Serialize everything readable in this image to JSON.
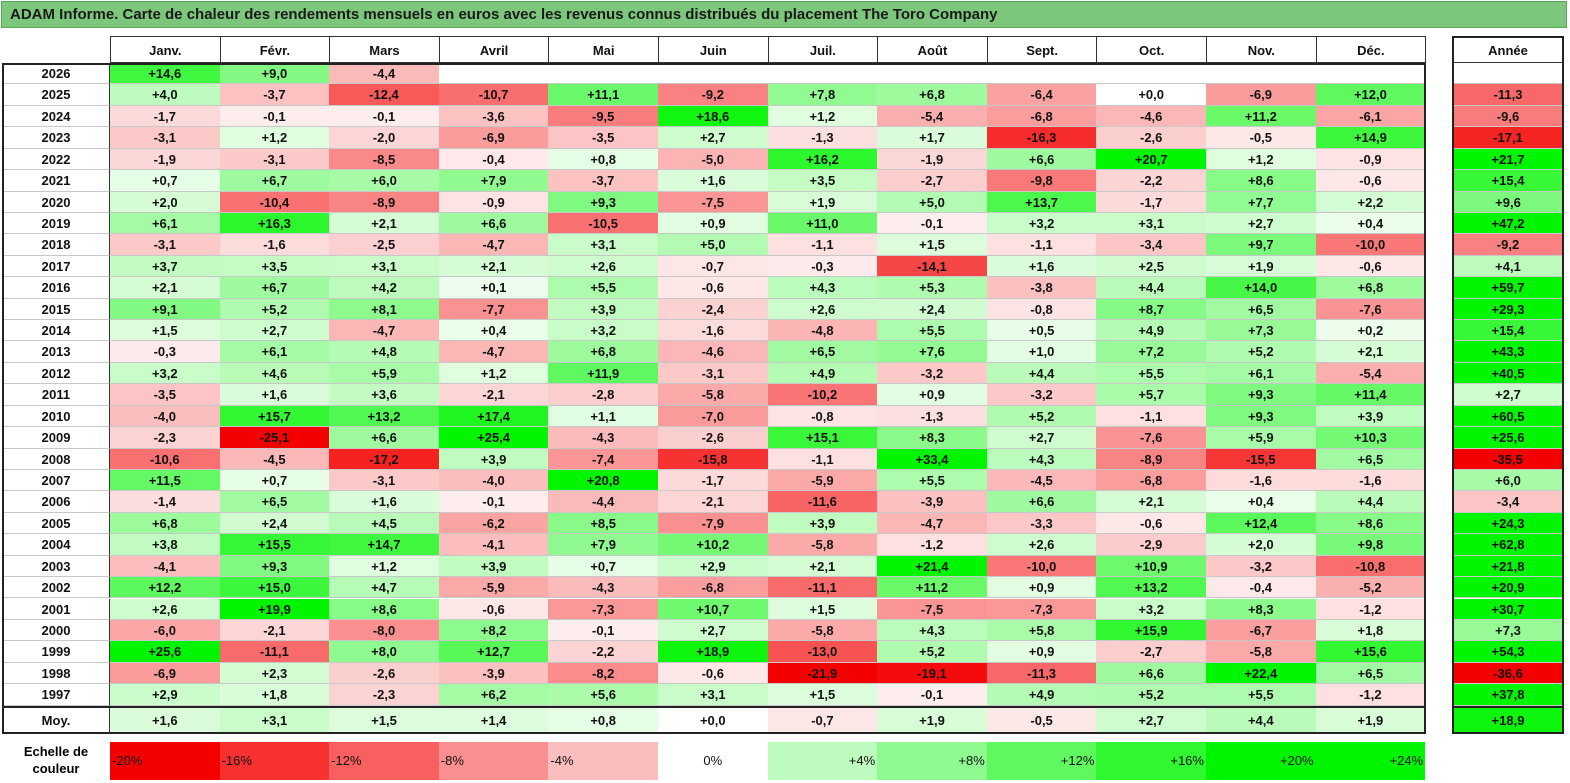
{
  "title": "ADAM Informe. Carte de chaleur des rendements mensuels en euros avec les revenus connus distribués du placement The Toro Company",
  "chart_data": {
    "type": "heatmap",
    "columns": [
      "Janv.",
      "Févr.",
      "Mars",
      "Avril",
      "Mai",
      "Juin",
      "Juil.",
      "Août",
      "Sept.",
      "Oct.",
      "Nov.",
      "Déc."
    ],
    "year_column": "Année",
    "rows": [
      {
        "label": "2026",
        "values": [
          "+14,6",
          "+9,0",
          "-4,4",
          "",
          "",
          "",
          "",
          "",
          "",
          "",
          "",
          ""
        ],
        "year": ""
      },
      {
        "label": "2025",
        "values": [
          "+4,0",
          "-3,7",
          "-12,4",
          "-10,7",
          "+11,1",
          "-9,2",
          "+7,8",
          "+6,8",
          "-6,4",
          "+0,0",
          "-6,9",
          "+12,0"
        ],
        "year": "-11,3"
      },
      {
        "label": "2024",
        "values": [
          "-1,7",
          "-0,1",
          "-0,1",
          "-3,6",
          "-9,5",
          "+18,6",
          "+1,2",
          "-5,4",
          "-6,8",
          "-4,6",
          "+11,2",
          "-6,1"
        ],
        "year": "-9,6"
      },
      {
        "label": "2023",
        "values": [
          "-3,1",
          "+1,2",
          "-2,0",
          "-6,9",
          "-3,5",
          "+2,7",
          "-1,3",
          "+1,7",
          "-16,3",
          "-2,6",
          "-0,5",
          "+14,9"
        ],
        "year": "-17,1"
      },
      {
        "label": "2022",
        "values": [
          "-1,9",
          "-3,1",
          "-8,5",
          "-0,4",
          "+0,8",
          "-5,0",
          "+16,2",
          "-1,9",
          "+6,6",
          "+20,7",
          "+1,2",
          "-0,9"
        ],
        "year": "+21,7"
      },
      {
        "label": "2021",
        "values": [
          "+0,7",
          "+6,7",
          "+6,0",
          "+7,9",
          "-3,7",
          "+1,6",
          "+3,5",
          "-2,7",
          "-9,8",
          "-2,2",
          "+8,6",
          "-0,6"
        ],
        "year": "+15,4"
      },
      {
        "label": "2020",
        "values": [
          "+2,0",
          "-10,4",
          "-8,9",
          "-0,9",
          "+9,3",
          "-7,5",
          "+1,9",
          "+5,0",
          "+13,7",
          "-1,7",
          "+7,7",
          "+2,2"
        ],
        "year": "+9,6"
      },
      {
        "label": "2019",
        "values": [
          "+6,1",
          "+16,3",
          "+2,1",
          "+6,6",
          "-10,5",
          "+0,9",
          "+11,0",
          "-0,1",
          "+3,2",
          "+3,1",
          "+2,7",
          "+0,4"
        ],
        "year": "+47,2"
      },
      {
        "label": "2018",
        "values": [
          "-3,1",
          "-1,6",
          "-2,5",
          "-4,7",
          "+3,1",
          "+5,0",
          "-1,1",
          "+1,5",
          "-1,1",
          "-3,4",
          "+9,7",
          "-10,0"
        ],
        "year": "-9,2"
      },
      {
        "label": "2017",
        "values": [
          "+3,7",
          "+3,5",
          "+3,1",
          "+2,1",
          "+2,6",
          "-0,7",
          "-0,3",
          "-14,1",
          "+1,6",
          "+2,5",
          "+1,9",
          "-0,6"
        ],
        "year": "+4,1"
      },
      {
        "label": "2016",
        "values": [
          "+2,1",
          "+6,7",
          "+4,2",
          "+0,1",
          "+5,5",
          "-0,6",
          "+4,3",
          "+5,3",
          "-3,8",
          "+4,4",
          "+14,0",
          "+6,8"
        ],
        "year": "+59,7"
      },
      {
        "label": "2015",
        "values": [
          "+9,1",
          "+5,2",
          "+8,1",
          "-7,7",
          "+3,9",
          "-2,4",
          "+2,6",
          "+2,4",
          "-0,8",
          "+8,7",
          "+6,5",
          "-7,6"
        ],
        "year": "+29,3"
      },
      {
        "label": "2014",
        "values": [
          "+1,5",
          "+2,7",
          "-4,7",
          "+0,4",
          "+3,2",
          "-1,6",
          "-4,8",
          "+5,5",
          "+0,5",
          "+4,9",
          "+7,3",
          "+0,2"
        ],
        "year": "+15,4"
      },
      {
        "label": "2013",
        "values": [
          "-0,3",
          "+6,1",
          "+4,8",
          "-4,7",
          "+6,8",
          "-4,6",
          "+6,5",
          "+7,6",
          "+1,0",
          "+7,2",
          "+5,2",
          "+2,1"
        ],
        "year": "+43,3"
      },
      {
        "label": "2012",
        "values": [
          "+3,2",
          "+4,6",
          "+5,9",
          "+1,2",
          "+11,9",
          "-3,1",
          "+4,9",
          "-3,2",
          "+4,4",
          "+5,5",
          "+6,1",
          "-5,4"
        ],
        "year": "+40,5"
      },
      {
        "label": "2011",
        "values": [
          "-3,5",
          "+1,6",
          "+3,6",
          "-2,1",
          "-2,8",
          "-5,8",
          "-10,2",
          "+0,9",
          "-3,2",
          "+5,7",
          "+9,3",
          "+11,4"
        ],
        "year": "+2,7"
      },
      {
        "label": "2010",
        "values": [
          "-4,0",
          "+15,7",
          "+13,2",
          "+17,4",
          "+1,1",
          "-7,0",
          "-0,8",
          "-1,3",
          "+5,2",
          "-1,1",
          "+9,3",
          "+3,9"
        ],
        "year": "+60,5"
      },
      {
        "label": "2009",
        "values": [
          "-2,3",
          "-25,1",
          "+6,6",
          "+25,4",
          "-4,3",
          "-2,6",
          "+15,1",
          "+8,3",
          "+2,7",
          "-7,6",
          "+5,9",
          "+10,3"
        ],
        "year": "+25,6"
      },
      {
        "label": "2008",
        "values": [
          "-10,6",
          "-4,5",
          "-17,2",
          "+3,9",
          "-7,4",
          "-15,8",
          "-1,1",
          "+33,4",
          "+4,3",
          "-8,9",
          "-15,5",
          "+6,5"
        ],
        "year": "-35,5"
      },
      {
        "label": "2007",
        "values": [
          "+11,5",
          "+0,7",
          "-3,1",
          "-4,0",
          "+20,8",
          "-1,7",
          "-5,9",
          "+5,5",
          "-4,5",
          "-6,8",
          "-1,6",
          "-1,6"
        ],
        "year": "+6,0"
      },
      {
        "label": "2006",
        "values": [
          "-1,4",
          "+6,5",
          "+1,6",
          "-0,1",
          "-4,4",
          "-2,1",
          "-11,6",
          "-3,9",
          "+6,6",
          "+2,1",
          "+0,4",
          "+4,4"
        ],
        "year": "-3,4"
      },
      {
        "label": "2005",
        "values": [
          "+6,8",
          "+2,4",
          "+4,5",
          "-6,2",
          "+8,5",
          "-7,9",
          "+3,9",
          "-4,7",
          "-3,3",
          "-0,6",
          "+12,4",
          "+8,6"
        ],
        "year": "+24,3"
      },
      {
        "label": "2004",
        "values": [
          "+3,8",
          "+15,5",
          "+14,7",
          "-4,1",
          "+7,9",
          "+10,2",
          "-5,8",
          "-1,2",
          "+2,6",
          "-2,9",
          "+2,0",
          "+9,8"
        ],
        "year": "+62,8"
      },
      {
        "label": "2003",
        "values": [
          "-4,1",
          "+9,3",
          "+1,2",
          "+3,9",
          "+0,7",
          "+2,9",
          "+2,1",
          "+21,4",
          "-10,0",
          "+10,9",
          "-3,2",
          "-10,8"
        ],
        "year": "+21,8"
      },
      {
        "label": "2002",
        "values": [
          "+12,2",
          "+15,0",
          "+4,7",
          "-5,9",
          "-4,3",
          "-6,8",
          "-11,1",
          "+11,2",
          "+0,9",
          "+13,2",
          "-0,4",
          "-5,2"
        ],
        "year": "+20,9"
      },
      {
        "label": "2001",
        "values": [
          "+2,6",
          "+19,9",
          "+8,6",
          "-0,6",
          "-7,3",
          "+10,7",
          "+1,5",
          "-7,5",
          "-7,3",
          "+3,2",
          "+8,3",
          "-1,2"
        ],
        "year": "+30,7"
      },
      {
        "label": "2000",
        "values": [
          "-6,0",
          "-2,1",
          "-8,0",
          "+8,2",
          "-0,1",
          "+2,7",
          "-5,8",
          "+4,3",
          "+5,8",
          "+15,9",
          "-6,7",
          "+1,8"
        ],
        "year": "+7,3"
      },
      {
        "label": "1999",
        "values": [
          "+25,6",
          "-11,1",
          "+8,0",
          "+12,7",
          "-2,2",
          "+18,9",
          "-13,0",
          "+5,2",
          "+0,9",
          "-2,7",
          "-5,8",
          "+15,6"
        ],
        "year": "+54,3"
      },
      {
        "label": "1998",
        "values": [
          "-6,9",
          "+2,3",
          "-2,6",
          "-3,9",
          "-8,2",
          "-0,6",
          "-21,9",
          "-19,1",
          "-11,3",
          "+6,6",
          "+22,4",
          "+6,5"
        ],
        "year": "-36,6"
      },
      {
        "label": "1997",
        "values": [
          "+2,9",
          "+1,8",
          "-2,3",
          "+6,2",
          "+5,6",
          "+3,1",
          "+1,5",
          "-0,1",
          "+4,9",
          "+5,2",
          "+5,5",
          "-1,2"
        ],
        "year": "+37,8"
      }
    ],
    "average": {
      "label": "Moy.",
      "values": [
        "+1,6",
        "+3,1",
        "+1,5",
        "+1,4",
        "+0,8",
        "+0,0",
        "-0,7",
        "+1,9",
        "-0,5",
        "+2,7",
        "+4,4",
        "+1,9"
      ],
      "year": "+18,9"
    },
    "scale": {
      "label": "Echelle de couleur",
      "stops": [
        "-20%",
        "-16%",
        "-12%",
        "-8%",
        "-4%",
        "0%",
        "+4%",
        "+8%",
        "+12%",
        "+16%",
        "+20%",
        "+24%"
      ]
    }
  }
}
